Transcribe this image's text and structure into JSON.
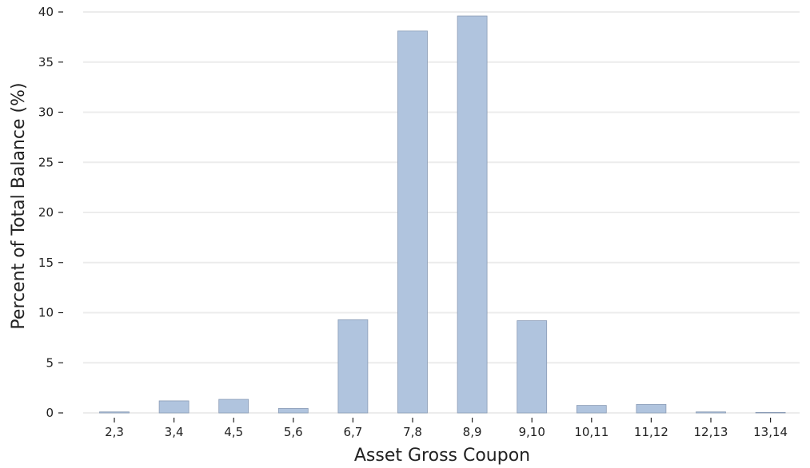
{
  "chart_data": {
    "type": "bar",
    "title": "",
    "xlabel": "Asset Gross Coupon",
    "ylabel": "Percent of Total Balance (%)",
    "categories": [
      "2,3",
      "3,4",
      "4,5",
      "5,6",
      "6,7",
      "7,8",
      "8,9",
      "9,10",
      "10,11",
      "11,12",
      "12,13",
      "13,14"
    ],
    "values": [
      0.1,
      1.2,
      1.35,
      0.45,
      9.3,
      38.1,
      39.6,
      9.2,
      0.75,
      0.85,
      0.1,
      0.0
    ],
    "ylim": [
      0,
      40
    ],
    "yticks": [
      0,
      5,
      10,
      15,
      20,
      25,
      30,
      35,
      40
    ],
    "grid": "horizontal",
    "legend": "none",
    "bar_color": "#b0c4de",
    "bar_edge_color": "#8a9bb5",
    "grid_color": "#ececec"
  }
}
